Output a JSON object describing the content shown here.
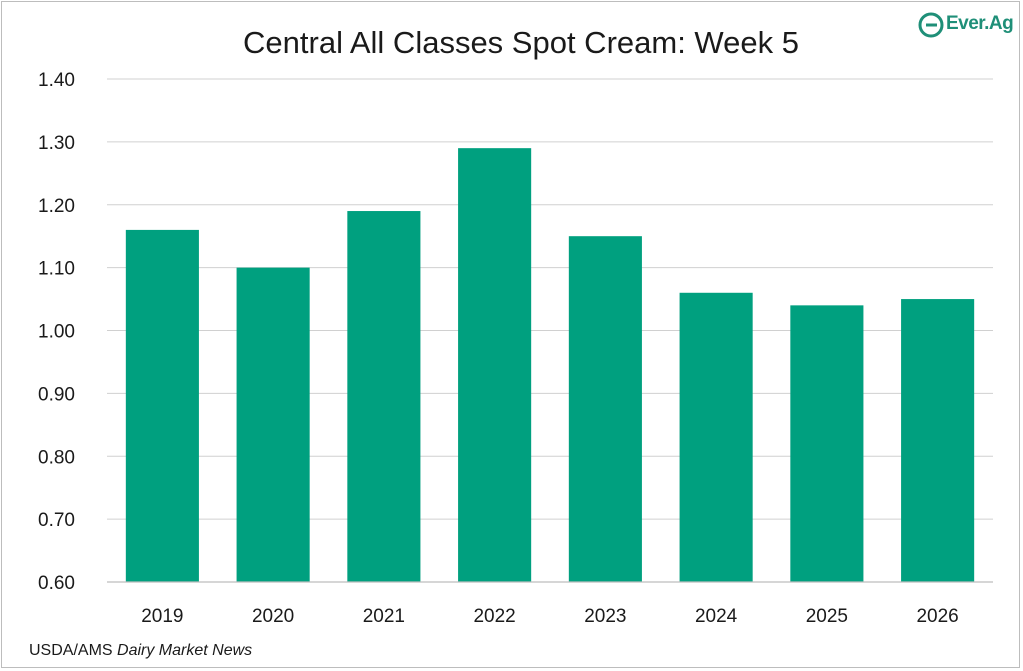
{
  "chart_data": {
    "type": "bar",
    "title": "Central All Classes Spot Cream: Week 5",
    "categories": [
      "2019",
      "2020",
      "2021",
      "2022",
      "2023",
      "2024",
      "2025",
      "2026"
    ],
    "values": [
      1.16,
      1.1,
      1.19,
      1.29,
      1.15,
      1.06,
      1.04,
      1.05
    ],
    "ylim": [
      0.6,
      1.4
    ],
    "yticks": [
      "0.60",
      "0.70",
      "0.80",
      "0.90",
      "1.00",
      "1.10",
      "1.20",
      "1.30",
      "1.40"
    ],
    "grid": true,
    "bar_color": "#00a07f"
  },
  "source": {
    "prefix": "USDA/AMS ",
    "italic": "Dairy Market News"
  },
  "logo": {
    "text": "Ever.Ag",
    "color": "#1f8f78"
  }
}
